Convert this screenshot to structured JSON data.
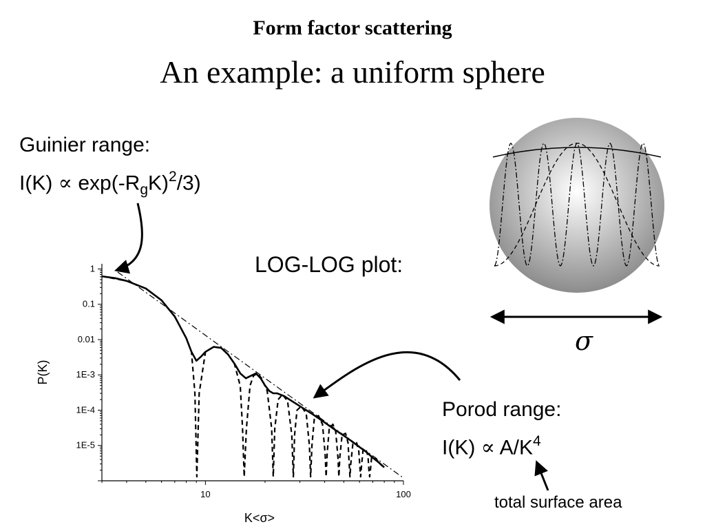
{
  "title": "Form factor scattering",
  "subtitle": "An example: a uniform sphere",
  "guinier": {
    "heading": "Guinier range:",
    "formula_prefix": "I(K)",
    "proportional_symbol": "∝",
    "formula_mid": "exp(-R",
    "formula_sub": "g",
    "formula_k": "K)",
    "formula_sup": "2",
    "formula_end": "/3)"
  },
  "loglog_label": "LOG-LOG plot:",
  "porod": {
    "heading": "Porod range:",
    "formula_prefix": "I(K)",
    "proportional_symbol": "∝",
    "formula_mid": "A/K",
    "formula_sup": "4"
  },
  "surface_label": "total surface area",
  "sphere": {
    "diameter_symbol": "σ",
    "gradient_center": "#ffffff",
    "gradient_edge": "#8c8c8c"
  },
  "chart_data": {
    "type": "line",
    "xlabel": "K<σ>",
    "ylabel": "P(K)",
    "x_scale": "log",
    "y_scale": "log",
    "xlim": [
      3,
      100
    ],
    "ylim": [
      1e-06,
      1.4
    ],
    "x_ticks": [
      {
        "value": 10,
        "label": "10"
      },
      {
        "value": 100,
        "label": "100"
      }
    ],
    "y_ticks": [
      {
        "value": 1,
        "label": "1"
      },
      {
        "value": 0.1,
        "label": "0.1"
      },
      {
        "value": 0.01,
        "label": "0.01"
      },
      {
        "value": 0.001,
        "label": "1E-3"
      },
      {
        "value": 0.0001,
        "label": "1E-4"
      },
      {
        "value": 1e-05,
        "label": "1E-5"
      }
    ],
    "series": [
      {
        "style": "solid",
        "x": [
          3,
          3.5,
          4,
          5,
          6,
          7,
          8,
          8.5,
          9,
          9.5,
          10,
          11,
          12,
          13,
          14,
          15,
          16,
          17,
          18,
          19,
          20,
          21,
          22,
          23,
          25,
          30,
          35,
          40,
          45,
          50,
          55,
          60,
          65,
          70,
          75,
          80
        ],
        "y": [
          0.62,
          0.55,
          0.46,
          0.28,
          0.13,
          0.045,
          0.011,
          0.0045,
          0.0025,
          0.0033,
          0.0045,
          0.0062,
          0.0058,
          0.0038,
          0.0021,
          0.0011,
          0.0008,
          0.00095,
          0.0011,
          0.0008,
          0.0005,
          0.00035,
          0.0003,
          0.0003,
          0.00025,
          0.00013,
          7.5e-05,
          4.5e-05,
          2.8e-05,
          1.9e-05,
          1.3e-05,
          9e-06,
          6.5e-06,
          4.5e-06,
          3.3e-06,
          2.4e-06
        ]
      },
      {
        "style": "dashed",
        "x": [
          3,
          4,
          5,
          6,
          7,
          8,
          8.5,
          8.85,
          9.05,
          9.3,
          10,
          11,
          12,
          13,
          14,
          15,
          15.4,
          15.7,
          16.1,
          16.8,
          17.5,
          18.3,
          19.2,
          20.5,
          21.6,
          22,
          22.4,
          23.3,
          24.5,
          26,
          27.3,
          27.8,
          28.2,
          29,
          30.5,
          32.3,
          33.5,
          34,
          34.5,
          35.5,
          37.2,
          39,
          40.2,
          40.7,
          41.2,
          42.2,
          44,
          45.5,
          46.7,
          47.2,
          47.7,
          49,
          51,
          52.5,
          53.2,
          53.7,
          54.2,
          55.5,
          58,
          59.5,
          60.3,
          60.8,
          61.3,
          62.5,
          64.5,
          66.2,
          67,
          67.5,
          68,
          69,
          72,
          76,
          80
        ],
        "y": [
          0.62,
          0.46,
          0.28,
          0.13,
          0.045,
          0.011,
          0.0045,
          0.0003,
          1.3e-06,
          0.0003,
          0.0045,
          0.0062,
          0.0058,
          0.0038,
          0.0021,
          0.00048,
          3e-05,
          1.3e-06,
          3e-05,
          0.0005,
          0.00095,
          0.0011,
          0.0008,
          0.00035,
          3e-05,
          1.3e-06,
          3e-05,
          0.0002,
          0.00028,
          0.00018,
          2e-05,
          1.3e-06,
          2e-05,
          0.0001,
          0.00013,
          8e-05,
          1e-05,
          1.3e-06,
          1e-05,
          6e-05,
          7e-05,
          4e-05,
          6e-06,
          1.3e-06,
          6e-06,
          3e-05,
          4e-05,
          2.5e-05,
          4.5e-06,
          1.3e-06,
          4.5e-06,
          2e-05,
          2.2e-05,
          1.2e-05,
          3e-06,
          1.3e-06,
          3e-06,
          1.1e-05,
          1.2e-05,
          7e-06,
          2.4e-06,
          1.3e-06,
          2.4e-06,
          7.5e-06,
          8e-06,
          5e-06,
          1.8e-06,
          1.3e-06,
          1.8e-06,
          4.5e-06,
          4.5e-06,
          3e-06,
          2.4e-06
        ]
      },
      {
        "style": "dash-dot",
        "x": [
          3.6,
          100
        ],
        "y": [
          0.82,
          1.2e-06
        ]
      }
    ]
  }
}
